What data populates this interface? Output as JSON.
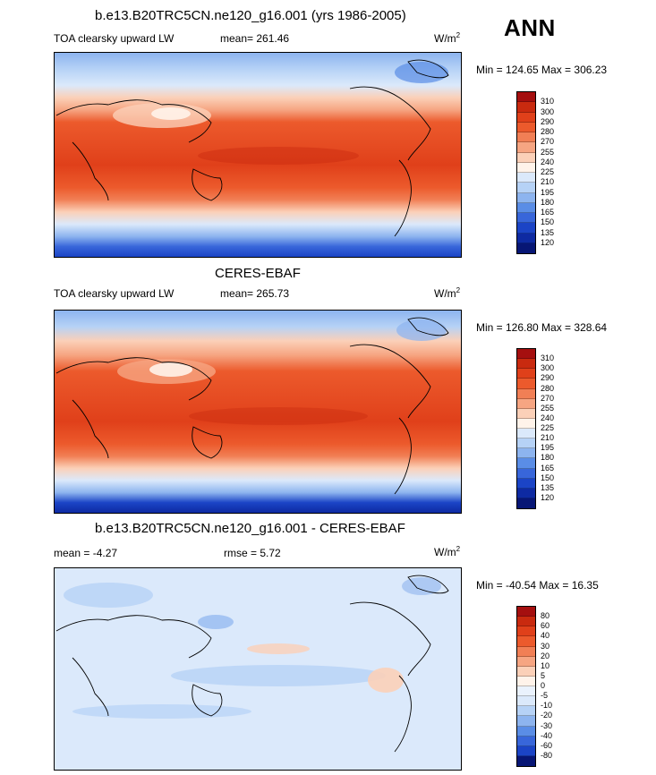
{
  "season": "ANN",
  "panels": [
    {
      "title": "b.e13.B20TRC5CN.ne120_g16.001 (yrs 1986-2005)",
      "left": "TOA clearsky upward LW",
      "center": "mean= 261.46",
      "units_base": "W/m",
      "units_exp": "2",
      "minmax": "Min = 124.65 Max = 306.23",
      "levels": [
        "310",
        "300",
        "290",
        "280",
        "270",
        "255",
        "240",
        "225",
        "210",
        "195",
        "180",
        "165",
        "150",
        "135",
        "120"
      ],
      "colors": [
        "#a50f0f",
        "#c92a0f",
        "#e0401a",
        "#ec5a2c",
        "#f17f55",
        "#f6a582",
        "#fbd0b8",
        "#fff3ea",
        "#dbe9fb",
        "#b6d2f6",
        "#8db4ef",
        "#5a8de6",
        "#3866da",
        "#1b44c6",
        "#0e2aa2",
        "#071675"
      ]
    },
    {
      "title": "CERES-EBAF",
      "left": "TOA clearsky upward LW",
      "center": "mean= 265.73",
      "units_base": "W/m",
      "units_exp": "2",
      "minmax": "Min = 126.80 Max = 328.64",
      "levels": [
        "310",
        "300",
        "290",
        "280",
        "270",
        "255",
        "240",
        "225",
        "210",
        "195",
        "180",
        "165",
        "150",
        "135",
        "120"
      ],
      "colors": [
        "#a50f0f",
        "#c92a0f",
        "#e0401a",
        "#ec5a2c",
        "#f17f55",
        "#f6a582",
        "#fbd0b8",
        "#fff3ea",
        "#dbe9fb",
        "#b6d2f6",
        "#8db4ef",
        "#5a8de6",
        "#3866da",
        "#1b44c6",
        "#0e2aa2",
        "#071675"
      ]
    },
    {
      "title": "b.e13.B20TRC5CN.ne120_g16.001 - CERES-EBAF",
      "left": "mean =  -4.27",
      "center": "rmse =   5.72",
      "units_base": "W/m",
      "units_exp": "2",
      "minmax": "Min = -40.54 Max =  16.35",
      "levels": [
        "80",
        "60",
        "40",
        "30",
        "20",
        "10",
        "5",
        "0",
        "-5",
        "-10",
        "-20",
        "-30",
        "-40",
        "-60",
        "-80"
      ],
      "colors": [
        "#a50f0f",
        "#c92a0f",
        "#e0401a",
        "#ec5a2c",
        "#f17f55",
        "#f6a582",
        "#fbd0b8",
        "#fff3ea",
        "#eaf2fd",
        "#dbe9fb",
        "#b6d2f6",
        "#8db4ef",
        "#5a8de6",
        "#3866da",
        "#1b44c6",
        "#071675"
      ]
    }
  ]
}
